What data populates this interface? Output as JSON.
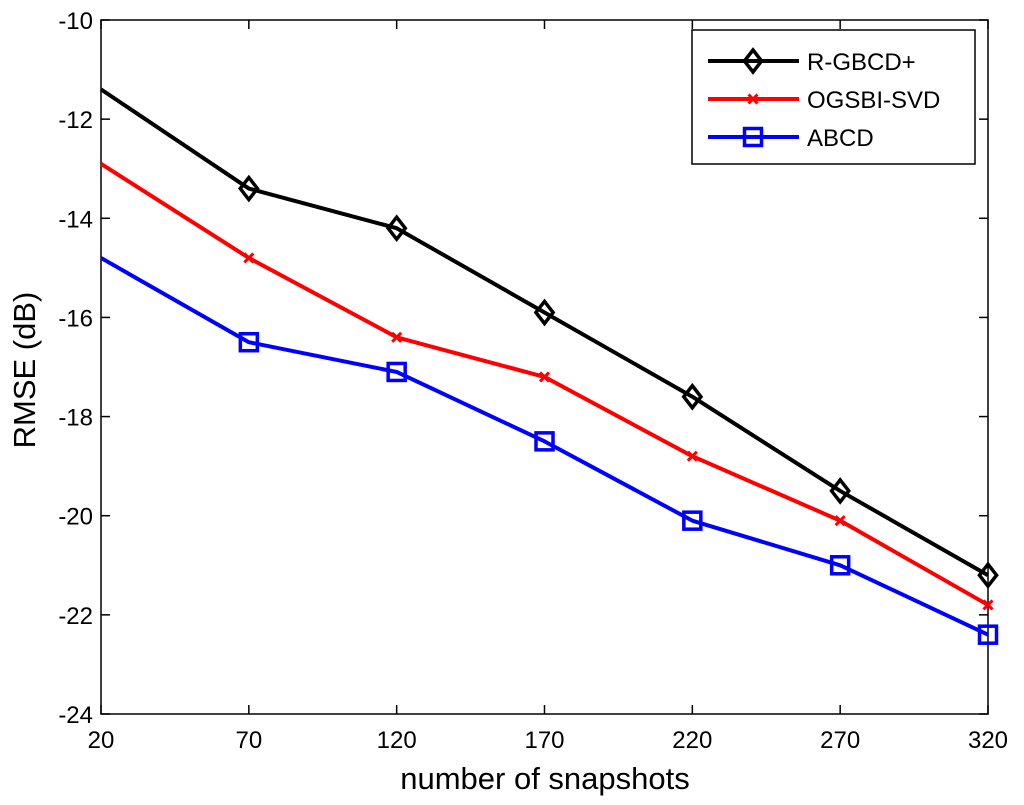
{
  "chart_data": {
    "type": "line",
    "title": "",
    "xlabel": "number of snapshots",
    "ylabel": "RMSE (dB)",
    "x": [
      20,
      70,
      120,
      170,
      220,
      270,
      320
    ],
    "xlim": [
      20,
      320
    ],
    "ylim": [
      -24,
      -10
    ],
    "xticks": [
      20,
      70,
      120,
      170,
      220,
      270,
      320
    ],
    "yticks": [
      -24,
      -22,
      -20,
      -18,
      -16,
      -14,
      -12,
      -10
    ],
    "grid": false,
    "legend_position": "top-right",
    "series": [
      {
        "name": "R-GBCD+",
        "color": "#000000",
        "marker": "diamond",
        "values": [
          -11.4,
          -13.4,
          -14.2,
          -15.9,
          -17.6,
          -19.5,
          -21.2
        ]
      },
      {
        "name": "OGSBI-SVD",
        "color": "#ff0000",
        "marker": "x",
        "values": [
          -12.9,
          -14.8,
          -16.4,
          -17.2,
          -18.8,
          -20.1,
          -21.8
        ]
      },
      {
        "name": "ABCD",
        "color": "#0000ff",
        "marker": "square",
        "values": [
          -14.8,
          -16.5,
          -17.1,
          -18.5,
          -20.1,
          -21.0,
          -22.4
        ]
      }
    ]
  }
}
